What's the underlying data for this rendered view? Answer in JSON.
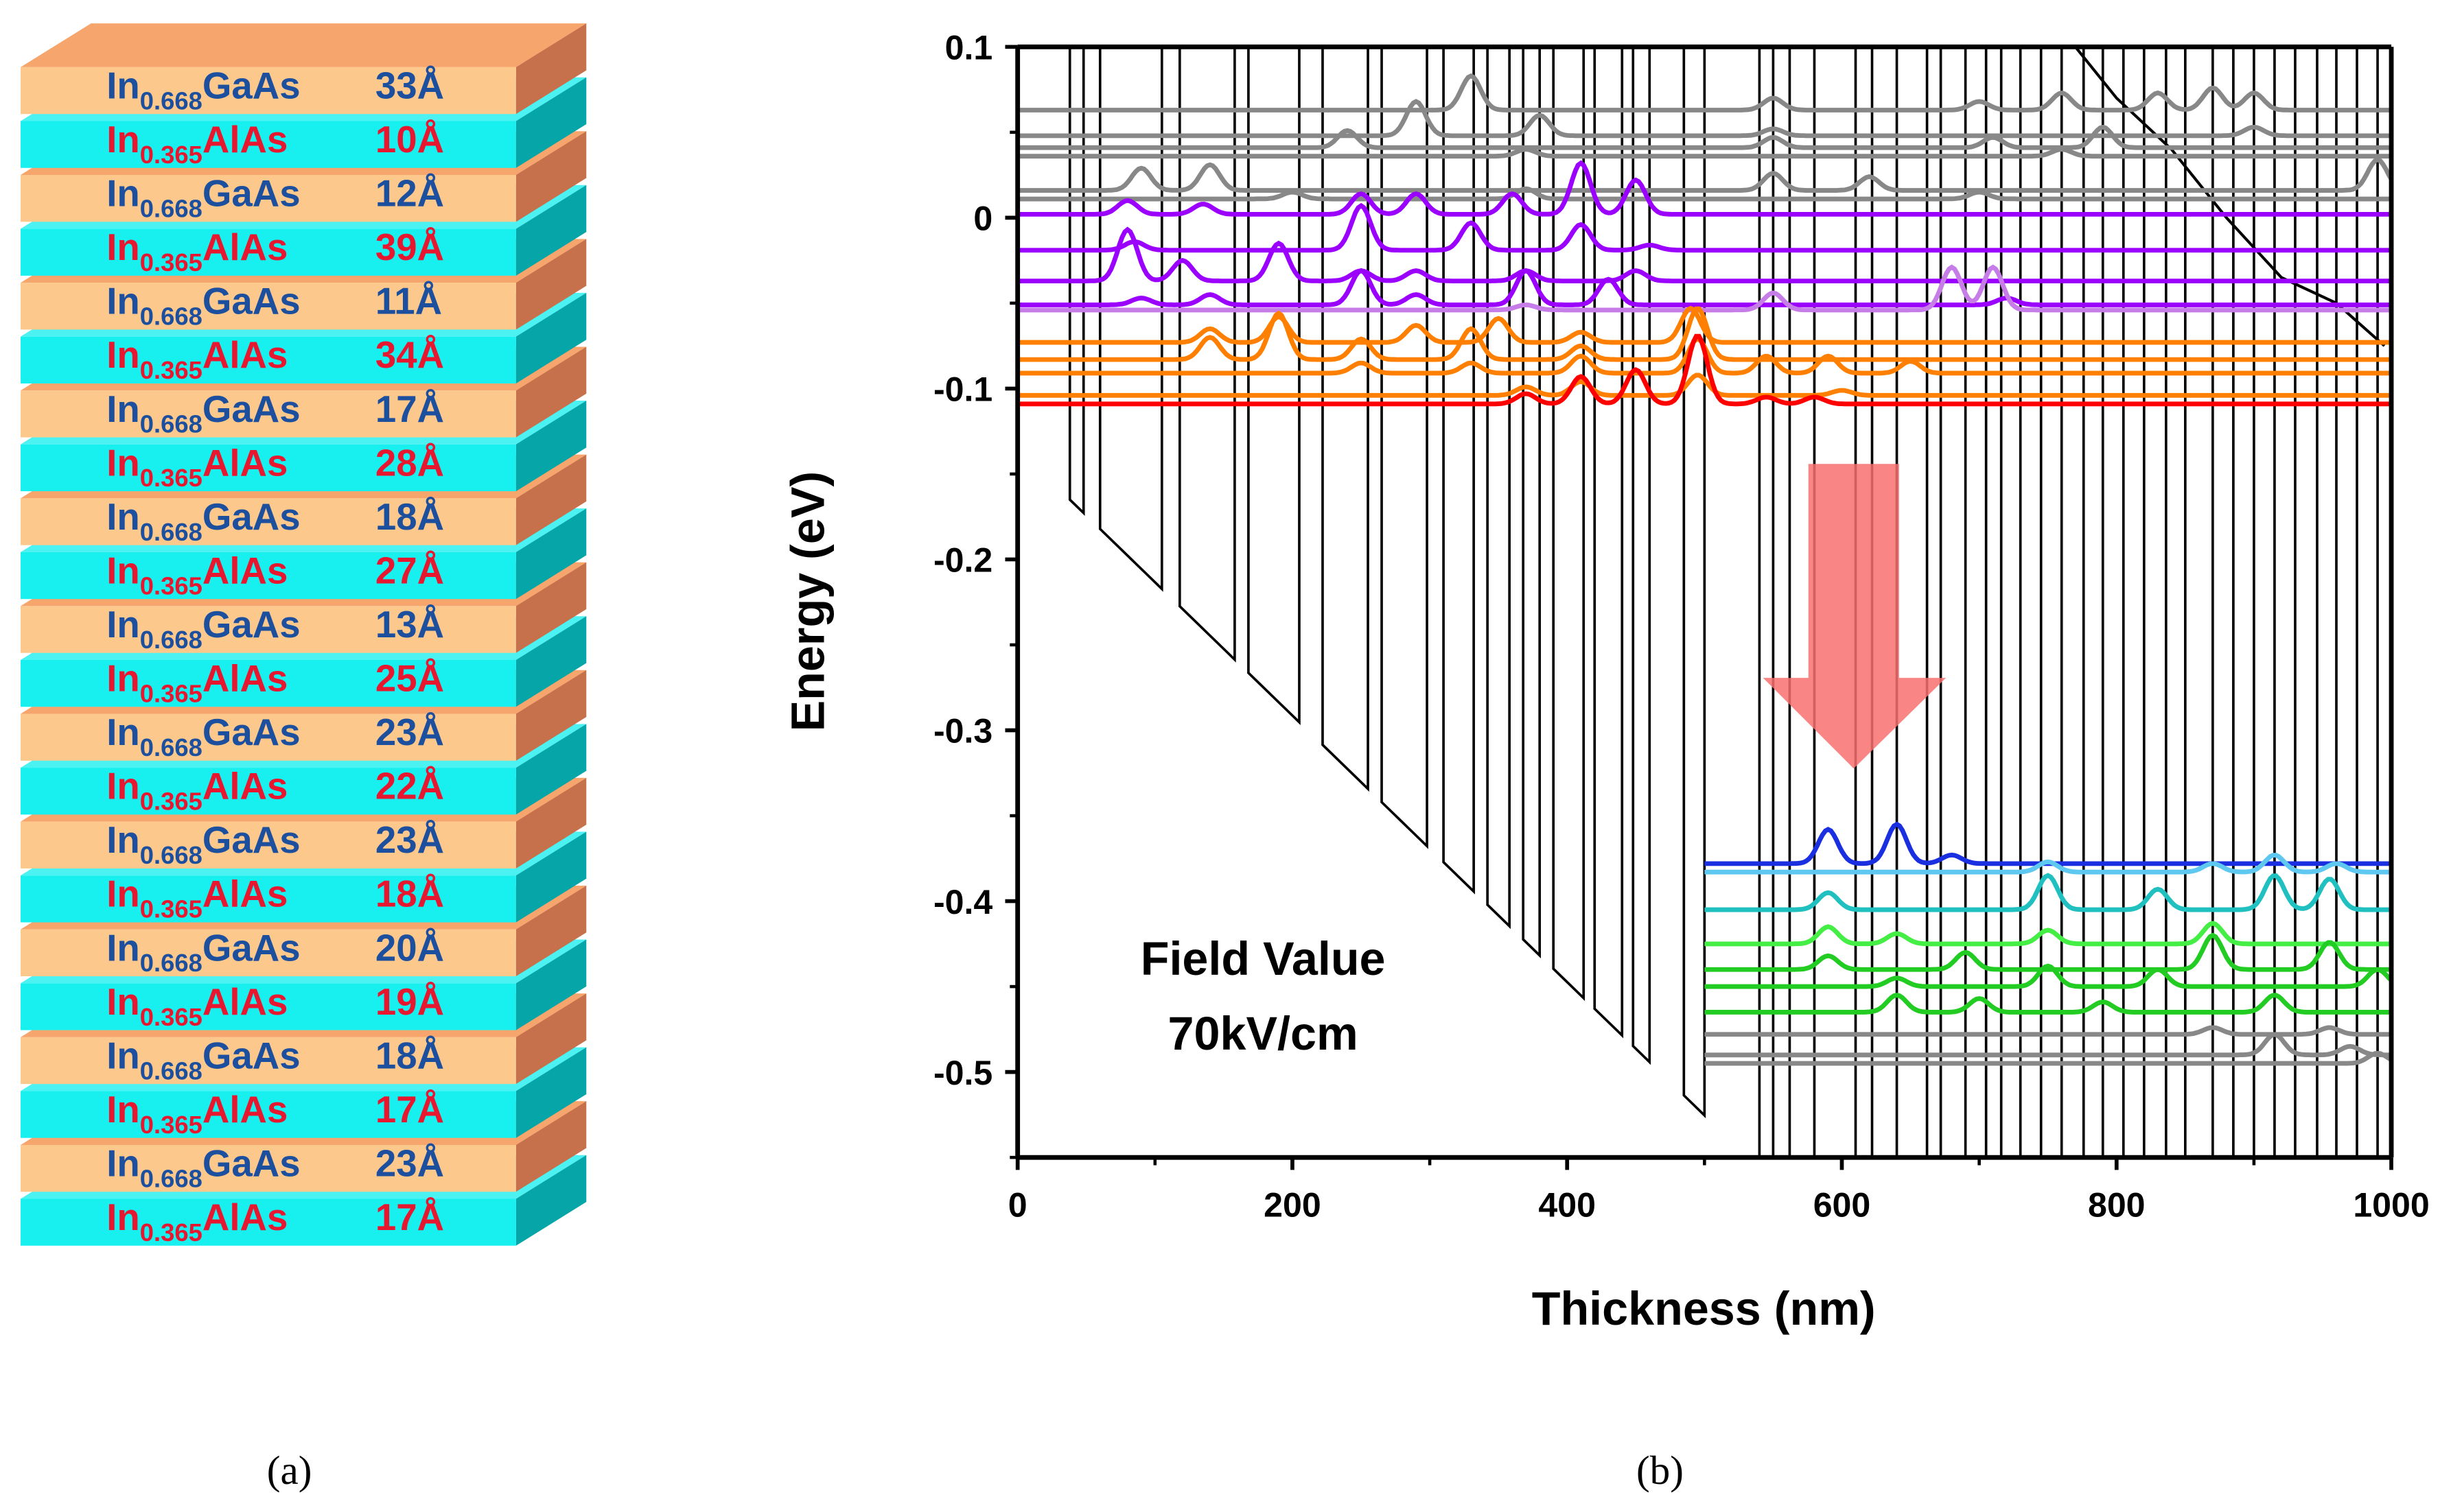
{
  "panel_a": {
    "caption": "(a)",
    "colors": {
      "gaas_front": "#fdc88c",
      "gaas_top": "#f6a56c",
      "gaas_side": "#c6714b",
      "alas_front": "#18f0f0",
      "alas_top": "#4cf2f2",
      "alas_side": "#06a5a8",
      "gaas_text": "#1c4f9e",
      "alas_text": "#e6172f"
    },
    "layers": [
      {
        "base": "In",
        "sub": "0.668",
        "rest": "GaAs",
        "thickness": "33Å",
        "type": "gaas"
      },
      {
        "base": "In",
        "sub": "0.365",
        "rest": "AlAs",
        "thickness": "10Å",
        "type": "alas"
      },
      {
        "base": "In",
        "sub": "0.668",
        "rest": "GaAs",
        "thickness": "12Å",
        "type": "gaas"
      },
      {
        "base": "In",
        "sub": "0.365",
        "rest": "AlAs",
        "thickness": "39Å",
        "type": "alas"
      },
      {
        "base": "In",
        "sub": "0.668",
        "rest": "GaAs",
        "thickness": "11Å",
        "type": "gaas"
      },
      {
        "base": "In",
        "sub": "0.365",
        "rest": "AlAs",
        "thickness": "34Å",
        "type": "alas"
      },
      {
        "base": "In",
        "sub": "0.668",
        "rest": "GaAs",
        "thickness": "17Å",
        "type": "gaas"
      },
      {
        "base": "In",
        "sub": "0.365",
        "rest": "AlAs",
        "thickness": "28Å",
        "type": "alas"
      },
      {
        "base": "In",
        "sub": "0.668",
        "rest": "GaAs",
        "thickness": "18Å",
        "type": "gaas"
      },
      {
        "base": "In",
        "sub": "0.365",
        "rest": "AlAs",
        "thickness": "27Å",
        "type": "alas"
      },
      {
        "base": "In",
        "sub": "0.668",
        "rest": "GaAs",
        "thickness": "13Å",
        "type": "gaas"
      },
      {
        "base": "In",
        "sub": "0.365",
        "rest": "AlAs",
        "thickness": "25Å",
        "type": "alas"
      },
      {
        "base": "In",
        "sub": "0.668",
        "rest": "GaAs",
        "thickness": "23Å",
        "type": "gaas"
      },
      {
        "base": "In",
        "sub": "0.365",
        "rest": "AlAs",
        "thickness": "22Å",
        "type": "alas"
      },
      {
        "base": "In",
        "sub": "0.668",
        "rest": "GaAs",
        "thickness": "23Å",
        "type": "gaas"
      },
      {
        "base": "In",
        "sub": "0.365",
        "rest": "AlAs",
        "thickness": "18Å",
        "type": "alas"
      },
      {
        "base": "In",
        "sub": "0.668",
        "rest": "GaAs",
        "thickness": "20Å",
        "type": "gaas"
      },
      {
        "base": "In",
        "sub": "0.365",
        "rest": "AlAs",
        "thickness": "19Å",
        "type": "alas"
      },
      {
        "base": "In",
        "sub": "0.668",
        "rest": "GaAs",
        "thickness": "18Å",
        "type": "gaas"
      },
      {
        "base": "In",
        "sub": "0.365",
        "rest": "AlAs",
        "thickness": "17Å",
        "type": "alas"
      },
      {
        "base": "In",
        "sub": "0.668",
        "rest": "GaAs",
        "thickness": "23Å",
        "type": "gaas"
      },
      {
        "base": "In",
        "sub": "0.365",
        "rest": "AlAs",
        "thickness": "17Å",
        "type": "alas"
      }
    ]
  },
  "chart_data": {
    "type": "line",
    "caption": "(b)",
    "xlabel": "Thickness (nm)",
    "ylabel": "Energy (eV)",
    "xlim": [
      0,
      1000
    ],
    "ylim": [
      -0.55,
      0.1
    ],
    "xticks": [
      0,
      200,
      400,
      600,
      800,
      1000
    ],
    "xtick_labels": [
      "0",
      "200",
      "400",
      "600",
      "800",
      "1000"
    ],
    "yticks": [
      0.1,
      0,
      -0.1,
      -0.2,
      -0.3,
      -0.4,
      -0.5
    ],
    "ytick_labels": [
      "0.1",
      "0",
      "-0.1",
      "-0.2",
      "-0.3",
      "-0.4",
      "-0.5"
    ],
    "annotation": {
      "line1": "Field Value",
      "line2": "70kV/cm"
    },
    "arrow_color": "#f87070",
    "band_profile": {
      "wells_nm": [
        [
          38,
          48
        ],
        [
          60,
          105
        ],
        [
          118,
          158
        ],
        [
          168,
          205
        ],
        [
          222,
          255
        ],
        [
          265,
          298
        ],
        [
          310,
          332
        ],
        [
          342,
          358
        ],
        [
          368,
          380
        ],
        [
          390,
          412
        ],
        [
          420,
          440
        ],
        [
          448,
          460
        ],
        [
          485,
          500
        ]
      ],
      "bottom_start_eV": -0.165,
      "bottom_slope_eV_per_nm": -0.00078,
      "full_lines_nm": [
        540,
        550,
        562,
        580,
        610,
        622,
        640,
        662,
        672,
        690,
        705,
        716,
        730,
        745,
        760,
        776,
        790,
        805,
        820,
        836,
        850,
        870,
        885,
        900,
        915,
        930,
        946,
        960,
        975,
        990
      ],
      "upper_edge": [
        [
          770,
          0.1
        ],
        [
          800,
          0.07
        ],
        [
          840,
          0.04
        ],
        [
          880,
          0.0
        ],
        [
          920,
          -0.035
        ],
        [
          960,
          -0.05
        ],
        [
          995,
          -0.075
        ]
      ]
    },
    "series": [
      {
        "name": "upper-1",
        "color": "#888888",
        "baseline": 0.063,
        "x": [
          0,
          1000
        ],
        "bumps": [
          [
            330,
            0.02
          ],
          [
            550,
            0.007
          ],
          [
            700,
            0.005
          ],
          [
            760,
            0.01
          ],
          [
            830,
            0.01
          ],
          [
            870,
            0.013
          ],
          [
            900,
            0.01
          ]
        ]
      },
      {
        "name": "upper-2",
        "color": "#888888",
        "baseline": 0.048,
        "x": [
          0,
          1000
        ],
        "bumps": [
          [
            290,
            0.02
          ],
          [
            380,
            0.012
          ],
          [
            550,
            0.004
          ],
          [
            900,
            0.005
          ]
        ]
      },
      {
        "name": "upper-3",
        "color": "#888888",
        "baseline": 0.041,
        "x": [
          0,
          1000
        ],
        "bumps": [
          [
            240,
            0.01
          ],
          [
            550,
            0.006
          ],
          [
            710,
            0.006
          ],
          [
            790,
            0.012
          ]
        ]
      },
      {
        "name": "upper-4",
        "color": "#888888",
        "baseline": 0.036,
        "x": [
          0,
          1000
        ],
        "bumps": [
          [
            370,
            0.004
          ],
          [
            760,
            0.004
          ]
        ]
      },
      {
        "name": "upper-5",
        "color": "#888888",
        "baseline": 0.016,
        "x": [
          0,
          1000
        ],
        "bumps": [
          [
            90,
            0.013
          ],
          [
            140,
            0.015
          ],
          [
            550,
            0.01
          ],
          [
            620,
            0.008
          ],
          [
            990,
            0.018
          ]
        ]
      },
      {
        "name": "upper-6",
        "color": "#888888",
        "baseline": 0.011,
        "x": [
          0,
          1000
        ],
        "bumps": [
          [
            200,
            0.004
          ],
          [
            370,
            0.006
          ],
          [
            700,
            0.004
          ]
        ]
      },
      {
        "name": "purple-1",
        "color": "#9b00ff",
        "baseline": 0.002,
        "x": [
          0,
          1000
        ],
        "bumps": [
          [
            80,
            0.008
          ],
          [
            135,
            0.006
          ],
          [
            250,
            0.012
          ],
          [
            290,
            0.012
          ],
          [
            360,
            0.012
          ],
          [
            410,
            0.03
          ],
          [
            450,
            0.02
          ]
        ]
      },
      {
        "name": "purple-2",
        "color": "#9b00ff",
        "baseline": -0.019,
        "x": [
          0,
          1000
        ],
        "bumps": [
          [
            85,
            0.005
          ],
          [
            250,
            0.026
          ],
          [
            330,
            0.016
          ],
          [
            410,
            0.015
          ],
          [
            460,
            0.003
          ]
        ]
      },
      {
        "name": "purple-3",
        "color": "#9b00ff",
        "baseline": -0.037,
        "x": [
          0,
          1000
        ],
        "bumps": [
          [
            80,
            0.03
          ],
          [
            120,
            0.012
          ],
          [
            190,
            0.022
          ],
          [
            250,
            0.006
          ],
          [
            290,
            0.006
          ],
          [
            370,
            0.006
          ],
          [
            450,
            0.006
          ]
        ]
      },
      {
        "name": "purple-4",
        "color": "#9b00ff",
        "baseline": -0.051,
        "x": [
          0,
          1000
        ],
        "bumps": [
          [
            90,
            0.004
          ],
          [
            140,
            0.006
          ],
          [
            250,
            0.02
          ],
          [
            290,
            0.006
          ],
          [
            370,
            0.02
          ],
          [
            430,
            0.015
          ],
          [
            720,
            0.004
          ]
        ]
      },
      {
        "name": "light-purple",
        "color": "#c77de8",
        "baseline": -0.054,
        "x": [
          0,
          1000
        ],
        "bumps": [
          [
            370,
            0.003
          ],
          [
            550,
            0.01
          ],
          [
            680,
            0.025
          ],
          [
            710,
            0.025
          ]
        ]
      },
      {
        "name": "orange-1",
        "color": "#ff7f00",
        "baseline": -0.073,
        "x": [
          0,
          1000
        ],
        "bumps": [
          [
            140,
            0.008
          ],
          [
            190,
            0.015
          ],
          [
            290,
            0.01
          ],
          [
            350,
            0.014
          ],
          [
            410,
            0.006
          ],
          [
            490,
            0.02
          ]
        ]
      },
      {
        "name": "orange-2",
        "color": "#ff7f00",
        "baseline": -0.083,
        "x": [
          0,
          1000
        ],
        "bumps": [
          [
            140,
            0.013
          ],
          [
            190,
            0.027
          ],
          [
            250,
            0.012
          ],
          [
            330,
            0.018
          ],
          [
            410,
            0.008
          ],
          [
            495,
            0.03
          ]
        ]
      },
      {
        "name": "orange-3",
        "color": "#ff7f00",
        "baseline": -0.091,
        "x": [
          0,
          1000
        ],
        "bumps": [
          [
            250,
            0.006
          ],
          [
            330,
            0.006
          ],
          [
            410,
            0.01
          ],
          [
            495,
            0.02
          ],
          [
            545,
            0.01
          ],
          [
            590,
            0.01
          ],
          [
            650,
            0.007
          ]
        ]
      },
      {
        "name": "orange-4",
        "color": "#ff7f00",
        "baseline": -0.104,
        "x": [
          0,
          1000
        ],
        "bumps": [
          [
            370,
            0.005
          ],
          [
            410,
            0.008
          ],
          [
            495,
            0.012
          ],
          [
            600,
            0.003
          ]
        ]
      },
      {
        "name": "red",
        "color": "#ff0000",
        "baseline": -0.109,
        "x": [
          0,
          1000
        ],
        "bumps": [
          [
            370,
            0.006
          ],
          [
            410,
            0.016
          ],
          [
            450,
            0.02
          ],
          [
            495,
            0.04
          ],
          [
            545,
            0.004
          ],
          [
            580,
            0.004
          ]
        ]
      },
      {
        "name": "blue",
        "color": "#1a2fe0",
        "baseline": -0.378,
        "x": [
          500,
          1000
        ],
        "bumps": [
          [
            590,
            0.02
          ],
          [
            640,
            0.023
          ],
          [
            680,
            0.005
          ]
        ]
      },
      {
        "name": "light-blue",
        "color": "#5fc8f0",
        "baseline": -0.383,
        "x": [
          500,
          1000
        ],
        "bumps": [
          [
            750,
            0.006
          ],
          [
            870,
            0.005
          ],
          [
            915,
            0.01
          ],
          [
            960,
            0.005
          ]
        ]
      },
      {
        "name": "teal",
        "color": "#20c0c0",
        "baseline": -0.405,
        "x": [
          500,
          1000
        ],
        "bumps": [
          [
            590,
            0.01
          ],
          [
            750,
            0.02
          ],
          [
            830,
            0.012
          ],
          [
            915,
            0.02
          ],
          [
            955,
            0.018
          ]
        ]
      },
      {
        "name": "green-1",
        "color": "#44ee44",
        "baseline": -0.425,
        "x": [
          500,
          1000
        ],
        "bumps": [
          [
            590,
            0.01
          ],
          [
            640,
            0.006
          ],
          [
            750,
            0.008
          ],
          [
            870,
            0.012
          ]
        ]
      },
      {
        "name": "green-2",
        "color": "#22cc22",
        "baseline": -0.44,
        "x": [
          500,
          1000
        ],
        "bumps": [
          [
            590,
            0.008
          ],
          [
            690,
            0.01
          ],
          [
            870,
            0.02
          ],
          [
            955,
            0.016
          ]
        ]
      },
      {
        "name": "green-3",
        "color": "#22cc22",
        "baseline": -0.45,
        "x": [
          500,
          1000
        ],
        "bumps": [
          [
            640,
            0.005
          ],
          [
            750,
            0.012
          ],
          [
            830,
            0.01
          ],
          [
            990,
            0.01
          ]
        ]
      },
      {
        "name": "green-4",
        "color": "#22cc22",
        "baseline": -0.465,
        "x": [
          500,
          1000
        ],
        "bumps": [
          [
            640,
            0.01
          ],
          [
            700,
            0.008
          ],
          [
            790,
            0.006
          ],
          [
            915,
            0.01
          ]
        ]
      },
      {
        "name": "gray-low-1",
        "color": "#888888",
        "baseline": -0.478,
        "x": [
          500,
          1000
        ],
        "bumps": [
          [
            870,
            0.004
          ],
          [
            955,
            0.004
          ]
        ]
      },
      {
        "name": "gray-low-2",
        "color": "#888888",
        "baseline": -0.49,
        "x": [
          500,
          1000
        ],
        "bumps": [
          [
            915,
            0.012
          ],
          [
            970,
            0.005
          ]
        ]
      },
      {
        "name": "gray-low-3",
        "color": "#888888",
        "baseline": -0.495,
        "x": [
          500,
          1000
        ],
        "bumps": [
          [
            990,
            0.006
          ]
        ]
      }
    ]
  }
}
